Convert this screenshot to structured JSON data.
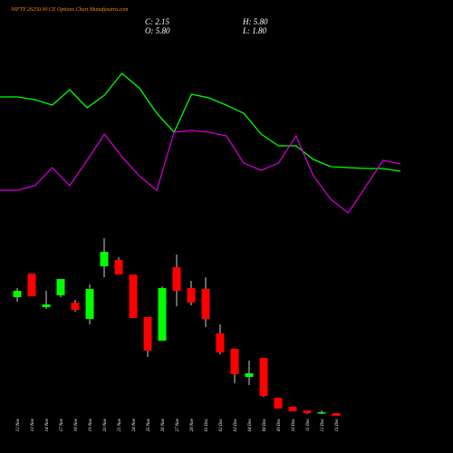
{
  "chart_data": [
    {
      "type": "candlestick",
      "title": "NIFTY 26250.00 CE Options Chart Munafasutra.com",
      "ohlc_labels": [
        "C: 2.15",
        "H: 5.80",
        "O: 5.80",
        "L: 1.80"
      ],
      "categories": [
        "12 Nov",
        "13 Nov",
        "14 Nov",
        "17 Nov",
        "18 Nov",
        "19 Nov",
        "20 Nov",
        "21 Nov",
        "24 Nov",
        "25 Nov",
        "26 Nov",
        "27 Nov",
        "28 Nov",
        "01 Dec",
        "02 Dec",
        "03 Dec",
        "04 Dec",
        "08 Dec",
        "09 Dec",
        "10 Dec",
        "11 Dec",
        "12 Dec",
        "15 Dec"
      ],
      "open": [
        25.56,
        30.24,
        23.58,
        25.92,
        24.48,
        21.24,
        31.68,
        32.94,
        30.06,
        21.6,
        16.92,
        31.5,
        27.36,
        27.18,
        18.36,
        15.3,
        9.72,
        13.5,
        5.58,
        3.78,
        3.06,
        2.52,
        2.52
      ],
      "close": [
        26.82,
        25.74,
        24.12,
        29.16,
        23.04,
        27.18,
        34.56,
        30.06,
        21.42,
        14.94,
        27.36,
        26.82,
        24.48,
        21.24,
        14.58,
        10.26,
        10.44,
        5.94,
        3.42,
        2.88,
        2.52,
        2.7,
        1.98
      ],
      "high": [
        27.36,
        30.24,
        26.82,
        29.16,
        25.02,
        28.08,
        37.26,
        33.48,
        30.06,
        21.6,
        27.72,
        34.02,
        28.8,
        29.52,
        20.16,
        15.3,
        12.96,
        13.5,
        5.58,
        3.78,
        3.06,
        3.06,
        2.52
      ],
      "low": [
        24.66,
        25.74,
        23.22,
        25.56,
        22.68,
        20.16,
        29.52,
        30.06,
        21.42,
        13.68,
        16.92,
        23.76,
        23.94,
        19.62,
        14.22,
        8.46,
        8.1,
        5.76,
        3.42,
        2.88,
        2.34,
        2.34,
        1.98
      ],
      "up_color": "#00ff00",
      "down_color": "#ff0000",
      "ylim": [
        0,
        37.8
      ]
    },
    {
      "type": "line",
      "series": [
        {
          "color": "#00ff00",
          "values": [
            113,
            113,
            110,
            104,
            121,
            101,
            115,
            139,
            123,
            95,
            74,
            116,
            112,
            104,
            95,
            72,
            59,
            59,
            44,
            36,
            35,
            34,
            34,
            31
          ]
        },
        {
          "color": "#cc00cc",
          "values": [
            10,
            10,
            15,
            35,
            15,
            43,
            72,
            47,
            26,
            10,
            74,
            76,
            74,
            70,
            40,
            32,
            40,
            70,
            26,
            0,
            -15,
            14,
            43,
            39
          ]
        }
      ],
      "ylim": [
        -20,
        150
      ]
    }
  ]
}
